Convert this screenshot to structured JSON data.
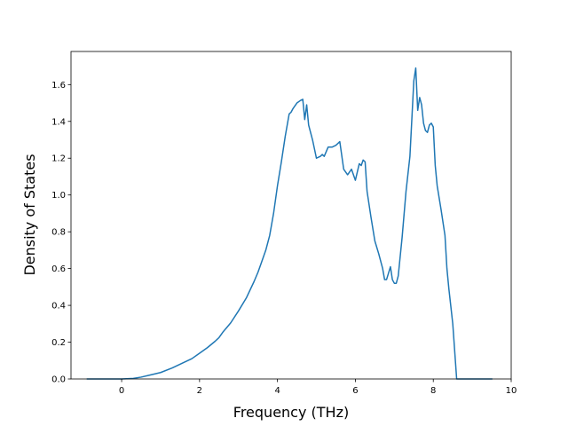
{
  "chart_data": {
    "type": "line",
    "title": "",
    "xlabel": "Frequency (THz)",
    "ylabel": "Density of States",
    "xlim": [
      -1.3,
      10.0
    ],
    "ylim": [
      0.0,
      1.78
    ],
    "xticks": [
      0,
      2,
      4,
      6,
      8,
      10
    ],
    "xtick_labels": [
      "0",
      "2",
      "4",
      "6",
      "8",
      "10"
    ],
    "yticks": [
      0.0,
      0.2,
      0.4,
      0.6,
      0.8,
      1.0,
      1.2,
      1.4,
      1.6
    ],
    "ytick_labels": [
      "0.0",
      "0.2",
      "0.4",
      "0.6",
      "0.8",
      "1.0",
      "1.2",
      "1.4",
      "1.6"
    ],
    "grid": false,
    "legend": "none",
    "color": "#1f77b4",
    "series": [
      {
        "x": [
          -0.88,
          0.0,
          0.3,
          0.5,
          0.7,
          1.0,
          1.3,
          1.6,
          1.8,
          2.0,
          2.2,
          2.4,
          2.5,
          2.6,
          2.7,
          2.8,
          3.0,
          3.2,
          3.4,
          3.5,
          3.6,
          3.7,
          3.8,
          3.9,
          4.0,
          4.1,
          4.2,
          4.3,
          4.35,
          4.4,
          4.5,
          4.6,
          4.65,
          4.7,
          4.75,
          4.8,
          4.9,
          5.0,
          5.1,
          5.15,
          5.2,
          5.3,
          5.4,
          5.5,
          5.55,
          5.6,
          5.7,
          5.8,
          5.9,
          6.0,
          6.1,
          6.15,
          6.2,
          6.25,
          6.3,
          6.4,
          6.5,
          6.6,
          6.7,
          6.75,
          6.8,
          6.9,
          6.95,
          7.0,
          7.05,
          7.1,
          7.2,
          7.3,
          7.4,
          7.5,
          7.55,
          7.6,
          7.65,
          7.7,
          7.75,
          7.8,
          7.85,
          7.9,
          7.95,
          8.0,
          8.05,
          8.1,
          8.2,
          8.3,
          8.35,
          8.4,
          8.5,
          8.6,
          8.65,
          8.7,
          9.0,
          9.3,
          9.5
        ],
        "y": [
          0.0,
          0.0,
          0.003,
          0.01,
          0.02,
          0.035,
          0.06,
          0.09,
          0.11,
          0.14,
          0.17,
          0.205,
          0.225,
          0.255,
          0.28,
          0.305,
          0.37,
          0.44,
          0.53,
          0.58,
          0.64,
          0.7,
          0.78,
          0.9,
          1.05,
          1.18,
          1.32,
          1.44,
          1.45,
          1.47,
          1.5,
          1.515,
          1.52,
          1.41,
          1.49,
          1.38,
          1.3,
          1.2,
          1.21,
          1.22,
          1.21,
          1.26,
          1.26,
          1.27,
          1.28,
          1.29,
          1.14,
          1.11,
          1.14,
          1.08,
          1.17,
          1.16,
          1.19,
          1.18,
          1.02,
          0.88,
          0.75,
          0.68,
          0.6,
          0.54,
          0.54,
          0.61,
          0.54,
          0.52,
          0.52,
          0.56,
          0.77,
          1.02,
          1.21,
          1.62,
          1.69,
          1.46,
          1.53,
          1.49,
          1.39,
          1.35,
          1.34,
          1.38,
          1.39,
          1.37,
          1.16,
          1.05,
          0.92,
          0.78,
          0.6,
          0.49,
          0.3,
          0.0,
          0.0,
          0.0,
          0.0,
          0.0,
          0.0
        ]
      }
    ]
  }
}
